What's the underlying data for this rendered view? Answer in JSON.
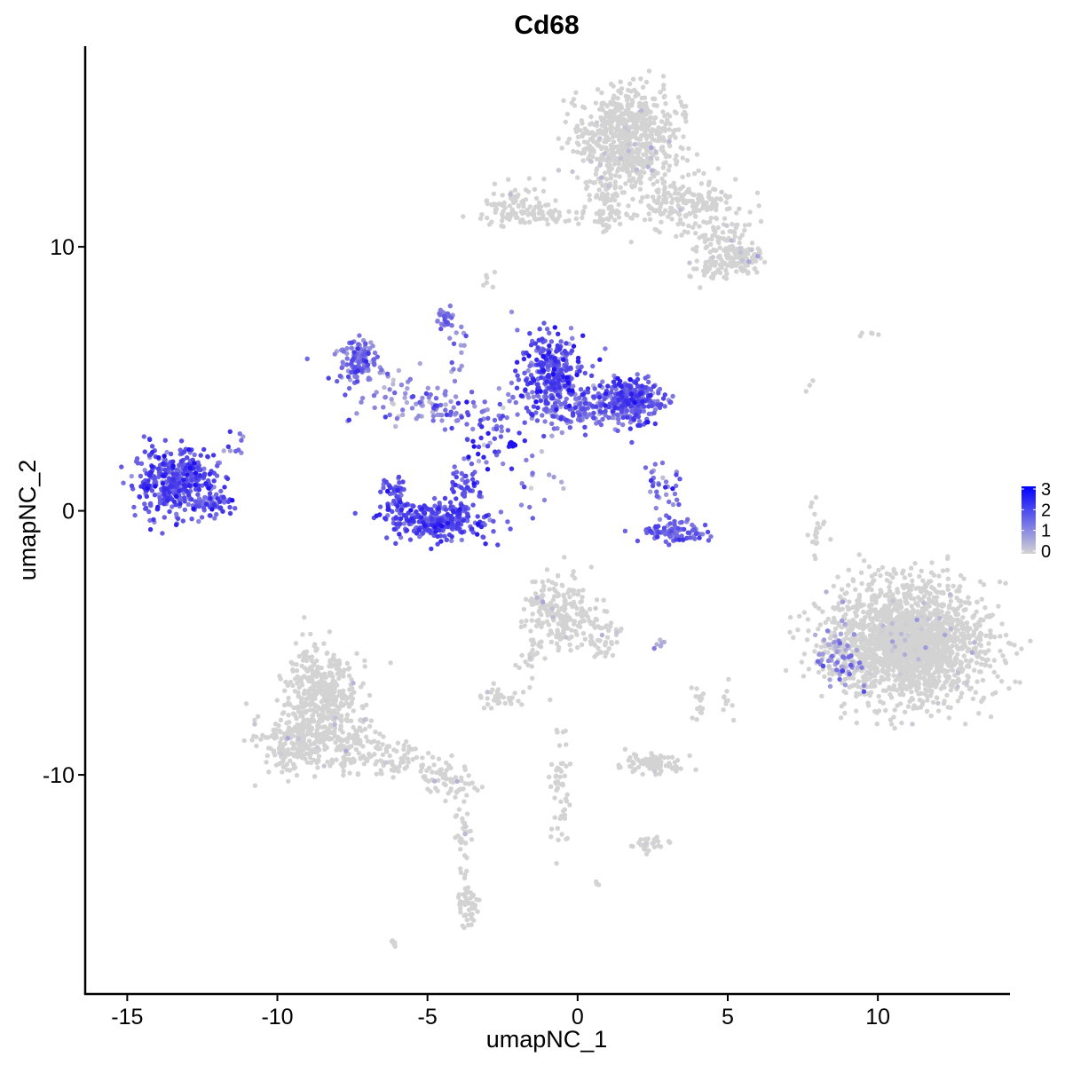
{
  "chart_data": {
    "type": "scatter",
    "title": "Cd68",
    "xlabel": "umapNC_1",
    "ylabel": "umapNC_2",
    "xlim": [
      -16.4,
      14.4
    ],
    "ylim": [
      -18.3,
      17.6
    ],
    "x_ticks": [
      -15,
      -10,
      -5,
      0,
      5,
      10
    ],
    "x_tick_labels": [
      "-15",
      "-10",
      "-5",
      "0",
      "5",
      "10"
    ],
    "y_ticks": [
      -10,
      0,
      10
    ],
    "y_tick_labels": [
      "-10",
      "0",
      "10"
    ],
    "grid": false,
    "legend": {
      "placement": "right",
      "type": "colorbar",
      "ticks": [
        0,
        1,
        2,
        3
      ],
      "tick_labels": [
        "0",
        "1",
        "2",
        "3"
      ],
      "low_color": "#d3d3d3",
      "high_color": "#0000ff"
    },
    "clusters": [
      {
        "x": -13.4,
        "y": 1.1,
        "sx": 0.7,
        "sy": 0.6,
        "n": 420,
        "expr": 1.9,
        "expr_sd": 0.5
      },
      {
        "x": -12.2,
        "y": 0.2,
        "sx": 0.3,
        "sy": 0.25,
        "n": 30,
        "expr": 1.8,
        "expr_sd": 0.4
      },
      {
        "x": -11.5,
        "y": 2.4,
        "sx": 0.25,
        "sy": 0.3,
        "n": 10,
        "expr": 1.6,
        "expr_sd": 0.4
      },
      {
        "x": -7.3,
        "y": 5.7,
        "sx": 0.3,
        "sy": 0.45,
        "n": 120,
        "expr": 1.5,
        "expr_sd": 0.5
      },
      {
        "x": -6.3,
        "y": 4.6,
        "sx": 0.8,
        "sy": 0.55,
        "n": 40,
        "expr": 1.1,
        "expr_sd": 0.6
      },
      {
        "x": -4.7,
        "y": -0.4,
        "sx": 0.9,
        "sy": 0.35,
        "n": 280,
        "expr": 2.0,
        "expr_sd": 0.4
      },
      {
        "x": -6.1,
        "y": 0.6,
        "sx": 0.2,
        "sy": 0.4,
        "n": 50,
        "expr": 1.9,
        "expr_sd": 0.4
      },
      {
        "x": -3.8,
        "y": 0.9,
        "sx": 0.25,
        "sy": 0.45,
        "n": 50,
        "expr": 1.9,
        "expr_sd": 0.4
      },
      {
        "x": -4.5,
        "y": 4.0,
        "sx": 0.9,
        "sy": 0.3,
        "n": 70,
        "expr": 1.3,
        "expr_sd": 0.6
      },
      {
        "x": -4.4,
        "y": 7.3,
        "sx": 0.15,
        "sy": 0.25,
        "n": 25,
        "expr": 1.5,
        "expr_sd": 0.4
      },
      {
        "x": -3.9,
        "y": 5.9,
        "sx": 0.25,
        "sy": 0.5,
        "n": 15,
        "expr": 1.2,
        "expr_sd": 0.5
      },
      {
        "x": -3.0,
        "y": 2.7,
        "sx": 0.5,
        "sy": 0.6,
        "n": 45,
        "expr": 1.9,
        "expr_sd": 0.6
      },
      {
        "x": -2.2,
        "y": 2.5,
        "sx": 0.08,
        "sy": 0.08,
        "n": 12,
        "expr": 3.0,
        "expr_sd": 0.1
      },
      {
        "x": -1.5,
        "y": 1.2,
        "sx": 0.4,
        "sy": 0.6,
        "n": 15,
        "expr": 1.2,
        "expr_sd": 0.6
      },
      {
        "x": -0.9,
        "y": 5.3,
        "sx": 0.55,
        "sy": 0.7,
        "n": 300,
        "expr": 1.9,
        "expr_sd": 0.5
      },
      {
        "x": -0.5,
        "y": 3.8,
        "sx": 0.9,
        "sy": 0.4,
        "n": 100,
        "expr": 1.7,
        "expr_sd": 0.5
      },
      {
        "x": 0.6,
        "y": 3.9,
        "sx": 0.5,
        "sy": 0.35,
        "n": 60,
        "expr": 1.4,
        "expr_sd": 0.6
      },
      {
        "x": 1.8,
        "y": 4.2,
        "sx": 0.5,
        "sy": 0.4,
        "n": 280,
        "expr": 1.8,
        "expr_sd": 0.5
      },
      {
        "x": 2.8,
        "y": 0.9,
        "sx": 0.35,
        "sy": 0.5,
        "n": 35,
        "expr": 1.6,
        "expr_sd": 0.5
      },
      {
        "x": 3.2,
        "y": -0.8,
        "sx": 0.55,
        "sy": 0.2,
        "n": 90,
        "expr": 1.7,
        "expr_sd": 0.4
      },
      {
        "x": 1.6,
        "y": 14.1,
        "sx": 0.8,
        "sy": 0.9,
        "n": 700,
        "expr": 0.1,
        "expr_sd": 0.3
      },
      {
        "x": 1.0,
        "y": 11.5,
        "sx": 0.25,
        "sy": 0.5,
        "n": 60,
        "expr": 0.1,
        "expr_sd": 0.3
      },
      {
        "x": -2.1,
        "y": 11.5,
        "sx": 0.6,
        "sy": 0.4,
        "n": 100,
        "expr": 0.1,
        "expr_sd": 0.3
      },
      {
        "x": -0.5,
        "y": 11.2,
        "sx": 0.8,
        "sy": 0.2,
        "n": 40,
        "expr": 0.1,
        "expr_sd": 0.3
      },
      {
        "x": 3.5,
        "y": 11.6,
        "sx": 0.9,
        "sy": 0.5,
        "n": 200,
        "expr": 0.1,
        "expr_sd": 0.3
      },
      {
        "x": 4.8,
        "y": 10.2,
        "sx": 0.5,
        "sy": 0.5,
        "n": 80,
        "expr": 0.1,
        "expr_sd": 0.3
      },
      {
        "x": 5.5,
        "y": 9.6,
        "sx": 0.3,
        "sy": 0.25,
        "n": 80,
        "expr": 0.1,
        "expr_sd": 0.3
      },
      {
        "x": 4.6,
        "y": 9.2,
        "sx": 0.4,
        "sy": 0.3,
        "n": 50,
        "expr": 0.1,
        "expr_sd": 0.3
      },
      {
        "x": -0.6,
        "y": -3.8,
        "sx": 0.55,
        "sy": 0.7,
        "n": 200,
        "expr": 0.1,
        "expr_sd": 0.3
      },
      {
        "x": 0.7,
        "y": -4.6,
        "sx": 0.4,
        "sy": 0.5,
        "n": 60,
        "expr": 0.1,
        "expr_sd": 0.3
      },
      {
        "x": -1.6,
        "y": -5.8,
        "sx": 0.2,
        "sy": 0.6,
        "n": 25,
        "expr": 0.1,
        "expr_sd": 0.3
      },
      {
        "x": -2.6,
        "y": -7.1,
        "sx": 0.35,
        "sy": 0.2,
        "n": 35,
        "expr": 0.2,
        "expr_sd": 0.3
      },
      {
        "x": 11.0,
        "y": -5.0,
        "sx": 1.3,
        "sy": 1.1,
        "n": 1900,
        "expr": 0.15,
        "expr_sd": 0.35
      },
      {
        "x": 8.7,
        "y": -5.6,
        "sx": 0.35,
        "sy": 0.6,
        "n": 80,
        "expr": 0.8,
        "expr_sd": 0.6
      },
      {
        "x": 7.9,
        "y": -0.5,
        "sx": 0.15,
        "sy": 0.6,
        "n": 20,
        "expr": 0.0,
        "expr_sd": 0.1
      },
      {
        "x": -8.5,
        "y": -6.9,
        "sx": 0.6,
        "sy": 0.9,
        "n": 400,
        "expr": 0.1,
        "expr_sd": 0.3
      },
      {
        "x": -9.4,
        "y": -8.8,
        "sx": 0.6,
        "sy": 0.6,
        "n": 200,
        "expr": 0.1,
        "expr_sd": 0.3
      },
      {
        "x": -7.8,
        "y": -8.8,
        "sx": 0.6,
        "sy": 0.5,
        "n": 120,
        "expr": 0.1,
        "expr_sd": 0.3
      },
      {
        "x": -6.1,
        "y": -9.4,
        "sx": 0.8,
        "sy": 0.35,
        "n": 80,
        "expr": 0.1,
        "expr_sd": 0.3
      },
      {
        "x": -4.3,
        "y": -10.2,
        "sx": 0.5,
        "sy": 0.3,
        "n": 60,
        "expr": 0.1,
        "expr_sd": 0.3
      },
      {
        "x": -3.8,
        "y": -12.5,
        "sx": 0.15,
        "sy": 1.0,
        "n": 40,
        "expr": 0.1,
        "expr_sd": 0.2
      },
      {
        "x": -3.6,
        "y": -15.0,
        "sx": 0.2,
        "sy": 0.4,
        "n": 40,
        "expr": 0.1,
        "expr_sd": 0.2
      },
      {
        "x": 2.4,
        "y": -9.6,
        "sx": 0.55,
        "sy": 0.2,
        "n": 80,
        "expr": 0.1,
        "expr_sd": 0.3
      },
      {
        "x": 2.4,
        "y": -12.5,
        "sx": 0.3,
        "sy": 0.15,
        "n": 25,
        "expr": 0.0,
        "expr_sd": 0.1
      },
      {
        "x": -0.6,
        "y": -10.5,
        "sx": 0.2,
        "sy": 1.2,
        "n": 50,
        "expr": 0.1,
        "expr_sd": 0.2
      },
      {
        "x": 4.0,
        "y": -7.2,
        "sx": 0.15,
        "sy": 0.4,
        "n": 15,
        "expr": 0.0,
        "expr_sd": 0.1
      },
      {
        "x": 5.0,
        "y": -7.3,
        "sx": 0.1,
        "sy": 0.35,
        "n": 10,
        "expr": 0.0,
        "expr_sd": 0.1
      },
      {
        "x": 2.8,
        "y": -5.0,
        "sx": 0.15,
        "sy": 0.1,
        "n": 6,
        "expr": 0.5,
        "expr_sd": 0.4
      },
      {
        "x": -3.0,
        "y": 8.8,
        "sx": 0.1,
        "sy": 0.2,
        "n": 6,
        "expr": 0.0,
        "expr_sd": 0.1
      },
      {
        "x": 9.6,
        "y": 6.7,
        "sx": 0.2,
        "sy": 0.05,
        "n": 5,
        "expr": 0.0,
        "expr_sd": 0.1
      },
      {
        "x": 7.7,
        "y": 4.7,
        "sx": 0.08,
        "sy": 0.2,
        "n": 3,
        "expr": 0.0,
        "expr_sd": 0.1
      },
      {
        "x": -6.1,
        "y": -16.4,
        "sx": 0.1,
        "sy": 0.08,
        "n": 5,
        "expr": 0.0,
        "expr_sd": 0.1
      },
      {
        "x": 0.6,
        "y": -14.1,
        "sx": 0.06,
        "sy": 0.06,
        "n": 3,
        "expr": 0.0,
        "expr_sd": 0.1
      }
    ]
  }
}
